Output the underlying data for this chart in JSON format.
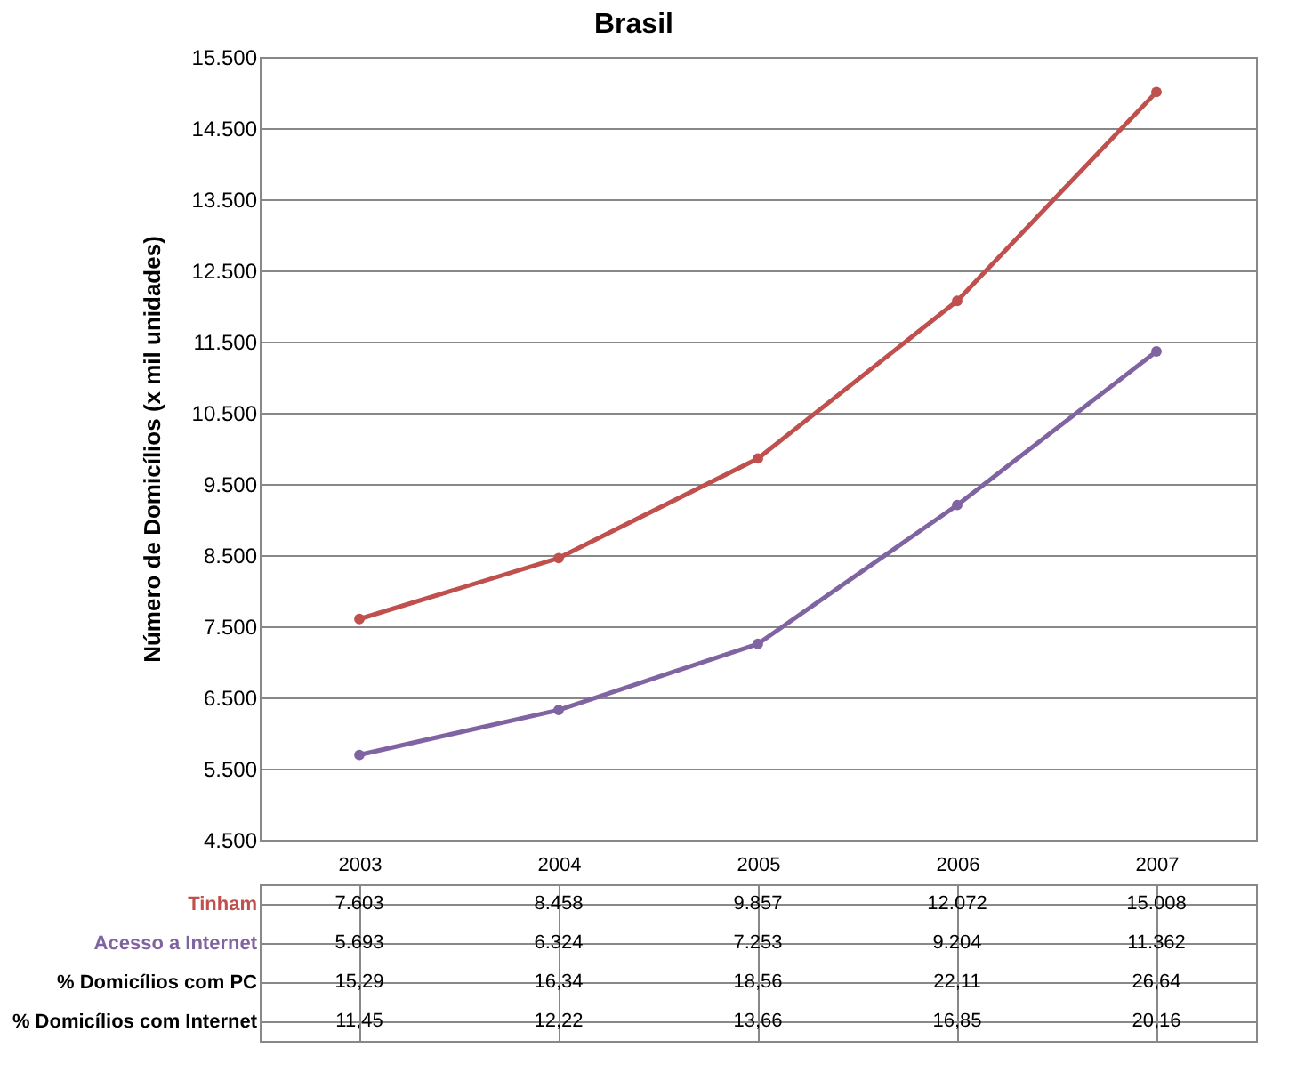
{
  "chart_data": {
    "type": "line",
    "title": "Brasil",
    "ylabel": "Número de Domicílios (x mil unidades)",
    "categories": [
      "2003",
      "2004",
      "2005",
      "2006",
      "2007"
    ],
    "series": [
      {
        "name": "Tinham",
        "color": "#c0504d",
        "values": [
          7603,
          8458,
          9857,
          12072,
          15008
        ],
        "value_labels": [
          "7.603",
          "8.458",
          "9.857",
          "12.072",
          "15.008"
        ]
      },
      {
        "name": "Acesso a Internet",
        "color": "#8064a2",
        "values": [
          5693,
          6324,
          7253,
          9204,
          11362
        ],
        "value_labels": [
          "5.693",
          "6.324",
          "7.253",
          "9.204",
          "11.362"
        ]
      },
      {
        "name": "% Domicílios com PC",
        "type": "other",
        "values": [
          null,
          null,
          null,
          null,
          null
        ],
        "value_labels": [
          "15,29",
          "16,34",
          "18,56",
          "22,11",
          "26,64"
        ]
      },
      {
        "name": "% Domicílios com Internet",
        "type": "other",
        "values": [
          null,
          null,
          null,
          null,
          null
        ],
        "value_labels": [
          "11,45",
          "12,22",
          "13,66",
          "16,85",
          "20,16"
        ]
      }
    ],
    "ylim": [
      4500,
      15500
    ],
    "yticks": [
      {
        "value": 4500,
        "label": "4.500"
      },
      {
        "value": 5500,
        "label": "5.500"
      },
      {
        "value": 6500,
        "label": "6.500"
      },
      {
        "value": 7500,
        "label": "7.500"
      },
      {
        "value": 8500,
        "label": "8.500"
      },
      {
        "value": 9500,
        "label": "9.500"
      },
      {
        "value": 10500,
        "label": "10.500"
      },
      {
        "value": 11500,
        "label": "11.500"
      },
      {
        "value": 12500,
        "label": "12.500"
      },
      {
        "value": 13500,
        "label": "13.500"
      },
      {
        "value": 14500,
        "label": "14.500"
      },
      {
        "value": 15500,
        "label": "15.500"
      }
    ],
    "grid": "y",
    "legend": "bottom",
    "marker": "circle",
    "line_style": "solid"
  }
}
